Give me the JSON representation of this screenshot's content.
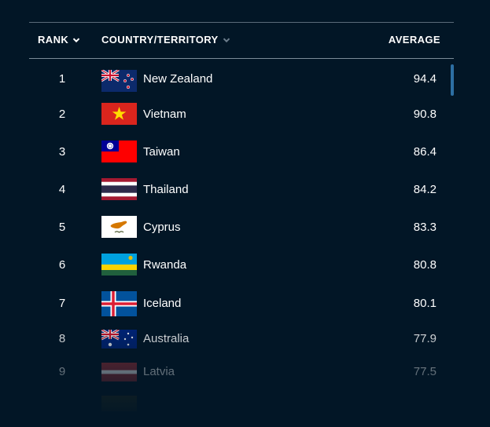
{
  "table": {
    "headers": {
      "rank": "RANK",
      "country": "COUNTRY/TERRITORY",
      "average": "AVERAGE"
    },
    "rows": [
      {
        "rank": "1",
        "country": "New Zealand",
        "average": "94.4",
        "flag": "new-zealand-flag"
      },
      {
        "rank": "2",
        "country": "Vietnam",
        "average": "90.8",
        "flag": "vietnam-flag"
      },
      {
        "rank": "3",
        "country": "Taiwan",
        "average": "86.4",
        "flag": "taiwan-flag"
      },
      {
        "rank": "4",
        "country": "Thailand",
        "average": "84.2",
        "flag": "thailand-flag"
      },
      {
        "rank": "5",
        "country": "Cyprus",
        "average": "83.3",
        "flag": "cyprus-flag"
      },
      {
        "rank": "6",
        "country": "Rwanda",
        "average": "80.8",
        "flag": "rwanda-flag"
      },
      {
        "rank": "7",
        "country": "Iceland",
        "average": "80.1",
        "flag": "iceland-flag"
      },
      {
        "rank": "8",
        "country": "Australia",
        "average": "77.9",
        "flag": "australia-flag"
      },
      {
        "rank": "9",
        "country": "Latvia",
        "average": "77.5",
        "flag": "latvia-flag"
      }
    ]
  },
  "colors": {
    "background": "#021626",
    "text": "#ffffff",
    "divider": "#7c8c98",
    "scrollbar": "#2d6fa3"
  }
}
